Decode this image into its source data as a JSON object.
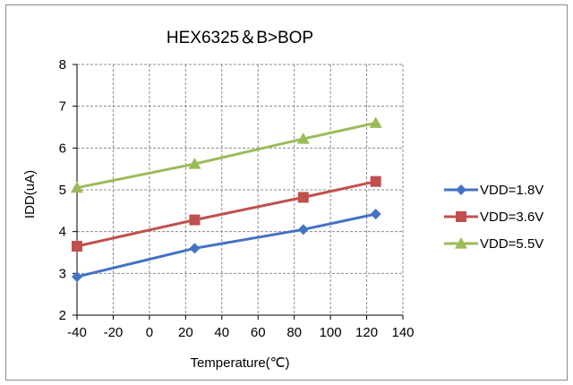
{
  "chart_data": {
    "type": "line",
    "title": "HEX6325＆B>BOP",
    "xlabel": "Temperature(℃)",
    "ylabel": "IDD(uA)",
    "xlim": [
      -40,
      140
    ],
    "ylim": [
      2,
      8
    ],
    "xticks": [
      -40,
      -20,
      0,
      20,
      40,
      60,
      80,
      100,
      120,
      140
    ],
    "yticks": [
      2,
      3,
      4,
      5,
      6,
      7,
      8
    ],
    "grid": true,
    "legend_position": "right",
    "series": [
      {
        "name": "VDD=1.8V",
        "color": "#4472c4",
        "marker": "diamond",
        "x": [
          -40,
          25,
          85,
          125
        ],
        "y": [
          2.92,
          3.6,
          4.05,
          4.42
        ]
      },
      {
        "name": "VDD=3.6V",
        "color": "#c0504d",
        "marker": "square",
        "x": [
          -40,
          25,
          85,
          125
        ],
        "y": [
          3.65,
          4.28,
          4.82,
          5.2
        ]
      },
      {
        "name": "VDD=5.5V",
        "color": "#9bbb59",
        "marker": "triangle",
        "x": [
          -40,
          25,
          85,
          125
        ],
        "y": [
          5.05,
          5.62,
          6.22,
          6.6
        ]
      }
    ]
  }
}
